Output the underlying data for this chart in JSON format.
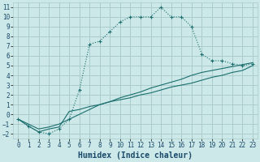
{
  "xlabel": "Humidex (Indice chaleur)",
  "background_color": "#cce8e8",
  "grid_color": "#aacccc",
  "line_color": "#1a6e6e",
  "xlim": [
    -0.5,
    23.5
  ],
  "ylim": [
    -2.5,
    11.5
  ],
  "xticks": [
    0,
    1,
    2,
    3,
    4,
    5,
    6,
    7,
    8,
    9,
    10,
    11,
    12,
    13,
    14,
    15,
    16,
    17,
    18,
    19,
    20,
    21,
    22,
    23
  ],
  "yticks": [
    -2,
    -1,
    0,
    1,
    2,
    3,
    4,
    5,
    6,
    7,
    8,
    9,
    10,
    11
  ],
  "series1_x": [
    0,
    1,
    2,
    3,
    4,
    5,
    6,
    7,
    8,
    9,
    10,
    11,
    12,
    13,
    14,
    15,
    16,
    17,
    18,
    19,
    20,
    21,
    22,
    23
  ],
  "series1_y": [
    -0.5,
    -1.2,
    -1.8,
    -2.0,
    -1.5,
    -0.5,
    2.5,
    7.2,
    7.5,
    8.5,
    9.5,
    10.0,
    10.0,
    10.0,
    11.0,
    10.0,
    10.0,
    9.0,
    6.2,
    5.5,
    5.5,
    5.2,
    5.0,
    5.2
  ],
  "series2_x": [
    0,
    1,
    2,
    3,
    4,
    5,
    6,
    7,
    8,
    9,
    10,
    11,
    12,
    13,
    14,
    15,
    16,
    17,
    18,
    19,
    20,
    21,
    22,
    23
  ],
  "series2_y": [
    -0.5,
    -1.2,
    -1.8,
    -1.5,
    -1.3,
    0.3,
    0.5,
    0.8,
    1.0,
    1.3,
    1.5,
    1.7,
    2.0,
    2.2,
    2.5,
    2.8,
    3.0,
    3.2,
    3.5,
    3.8,
    4.0,
    4.3,
    4.5,
    5.0
  ],
  "series3_x": [
    0,
    1,
    2,
    3,
    4,
    5,
    6,
    7,
    8,
    9,
    10,
    11,
    12,
    13,
    14,
    15,
    16,
    17,
    18,
    19,
    20,
    21,
    22,
    23
  ],
  "series3_y": [
    -0.5,
    -1.0,
    -1.5,
    -1.3,
    -1.0,
    -0.5,
    0.0,
    0.5,
    1.0,
    1.3,
    1.7,
    2.0,
    2.3,
    2.7,
    3.0,
    3.3,
    3.6,
    4.0,
    4.3,
    4.5,
    4.7,
    4.9,
    5.1,
    5.3
  ],
  "label_color": "#1a4a6a",
  "tick_fontsize": 5.5,
  "xlabel_fontsize": 7.0
}
